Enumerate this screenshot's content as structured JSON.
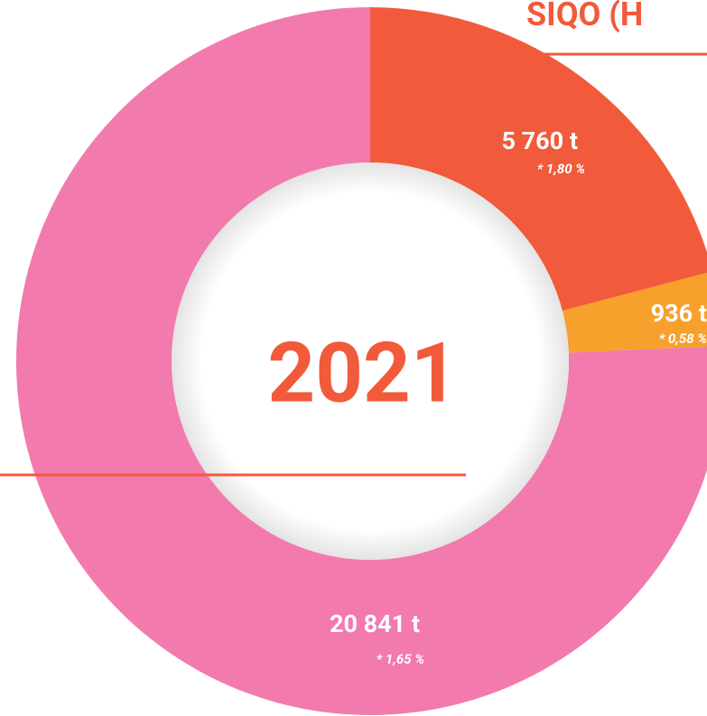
{
  "chart_data": {
    "type": "donut",
    "title": "SIQO (H",
    "center_label": "2021",
    "categories": [
      null,
      null,
      null
    ],
    "values": [
      5760,
      936,
      20841
    ],
    "value_labels": [
      "5 760 t",
      "936 t",
      "20 841 t"
    ],
    "notes": [
      "* 1,80 %",
      "* 0,58 %",
      "* 1,65 %"
    ],
    "colors": [
      "#f15a3a",
      "#f7a02c",
      "#f27aad"
    ]
  }
}
